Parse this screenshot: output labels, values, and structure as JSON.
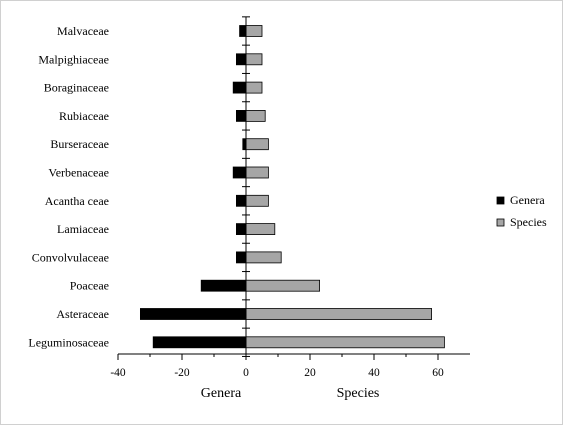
{
  "chart_data": {
    "type": "bar",
    "orientation": "horizontal",
    "categories": [
      "Malvaceae",
      "Malpighiaceae",
      "Boraginaceae",
      "Rubiaceae",
      "Burseraceae",
      "Verbenaceae",
      "Acantha ceae",
      "Lamiaceae",
      "Convolvulaceae",
      "Poaceae",
      "Asteraceae",
      "Leguminosaceae"
    ],
    "series": [
      {
        "name": "Genera",
        "color": "#000000",
        "values": [
          -2,
          -3,
          -4,
          -3,
          -1,
          -4,
          -3,
          -3,
          -3,
          -14,
          -33,
          -29
        ]
      },
      {
        "name": "Species",
        "color": "#a6a6a6",
        "values": [
          5,
          5,
          5,
          6,
          7,
          7,
          7,
          9,
          11,
          23,
          58,
          62
        ]
      }
    ],
    "xlim": [
      -40,
      70
    ],
    "x_ticks": [
      -40,
      -20,
      0,
      20,
      40,
      60
    ],
    "x_tick_labels": [
      "-40",
      "-20",
      "0",
      "20",
      "40",
      "60"
    ],
    "axis_captions": [
      "Genera",
      "Species"
    ],
    "title": "",
    "xlabel": "",
    "ylabel": "",
    "legend": {
      "position": "right"
    },
    "grid": false
  }
}
